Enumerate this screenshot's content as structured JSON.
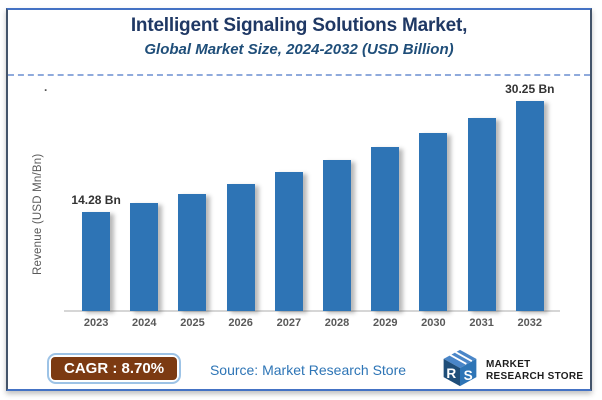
{
  "header": {
    "title": "Intelligent Signaling Solutions Market,",
    "subtitle": "Global Market Size, 2024-2032 (USD Billion)"
  },
  "chart_data": {
    "type": "bar",
    "title": "Intelligent Signaling Solutions Market,",
    "subtitle": "Global Market Size, 2024-2032 (USD Billion)",
    "xlabel": "",
    "ylabel": "Revenue (USD Mn/Bn)",
    "categories": [
      "2023",
      "2024",
      "2025",
      "2026",
      "2027",
      "2028",
      "2029",
      "2030",
      "2031",
      "2032"
    ],
    "values": [
      14.28,
      15.52,
      16.87,
      18.34,
      19.94,
      21.67,
      23.56,
      25.61,
      27.84,
      30.25
    ],
    "value_labels": [
      "14.28 Bn",
      "",
      "",
      "",
      "",
      "",
      "",
      "",
      "",
      "30.25 Bn"
    ],
    "ylim": [
      0,
      32
    ],
    "grid": false,
    "legend": false,
    "bar_color": "#2E74B5"
  },
  "footer": {
    "cagr_label": "CAGR : 8.70%",
    "source_text": "Source: Market Research Store",
    "logo": {
      "icon": "mrs-cube-logo",
      "line1": "MARKET",
      "line2": "RESEARCH STORE"
    }
  },
  "misc": {
    "stray_dot": "."
  },
  "colors": {
    "title_text": "#1F3864",
    "subtitle_text": "#1F4E79",
    "bar": "#2E74B5",
    "card_border_top_bottom": "#4472C4",
    "card_border_sides": "#44546A",
    "dashed_divider": "#8FAADC",
    "axis_text": "#595959",
    "cagr_background": "#7C3A12",
    "cagr_border": "#9DC3E6",
    "source_text": "#2E75B6"
  }
}
